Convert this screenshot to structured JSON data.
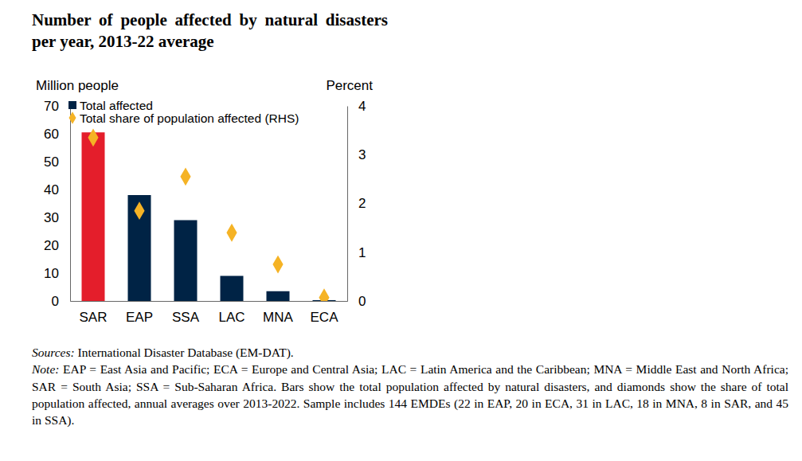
{
  "chart_data": {
    "type": "bar",
    "title": "Number of people affected by natural disasters per year, 2013-22 average",
    "y_label": "Million people",
    "y2_label": "Percent",
    "categories": [
      "SAR",
      "EAP",
      "SSA",
      "LAC",
      "MNA",
      "ECA"
    ],
    "series": [
      {
        "name": "Total affected",
        "type": "bar",
        "color": "#002345",
        "colors": [
          "#e41e2b",
          "#002345",
          "#002345",
          "#002345",
          "#002345",
          "#002345"
        ],
        "values": [
          60.5,
          38,
          29,
          9,
          3.5,
          0.3
        ]
      },
      {
        "name": "Total share of population affected (RHS)",
        "type": "scatter",
        "marker": "diamond",
        "color": "#f5b325",
        "axis": "y2",
        "values": [
          3.35,
          1.85,
          2.55,
          1.4,
          0.75,
          0.07
        ]
      }
    ],
    "ylim": [
      0,
      70
    ],
    "yticks": [
      0,
      10,
      20,
      30,
      40,
      50,
      60,
      70
    ],
    "y2lim": [
      0,
      4
    ],
    "y2ticks": [
      0,
      1,
      2,
      3,
      4
    ],
    "legend": "upper left",
    "grid": false,
    "sources_label": "Sources:",
    "sources": "International Disaster Database (EM-DAT).",
    "note_label": "Note:",
    "note": "EAP = East Asia and Pacific; ECA = Europe and Central Asia; LAC = Latin America and the Caribbean; MNA = Middle East and North Africa; SAR = South Asia; SSA = Sub-Saharan Africa. Bars show the total population affected by natural disasters, and diamonds show the share of total population affected, annual averages over 2013-2022. Sample includes 144 EMDEs (22 in EAP, 20 in ECA, 31 in LAC, 18 in MNA, 8 in SAR, and 45 in SSA)."
  }
}
